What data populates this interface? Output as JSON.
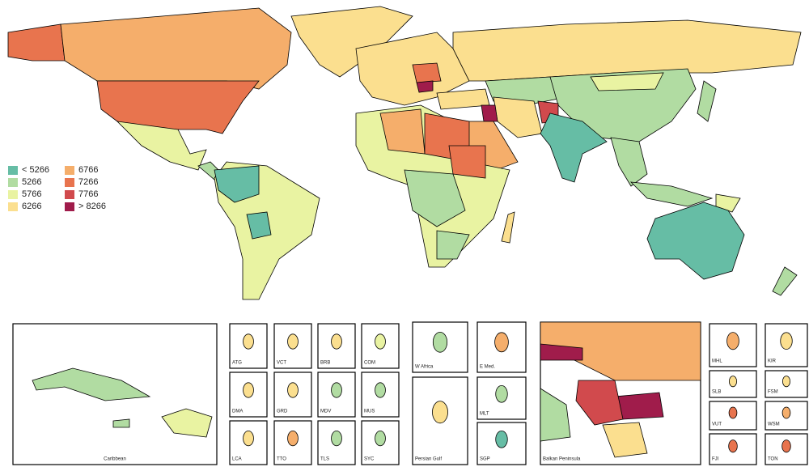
{
  "legend": {
    "items": [
      {
        "label": "< 5266",
        "color": "#66bda5"
      },
      {
        "label": "5266",
        "color": "#b1dca2"
      },
      {
        "label": "5766",
        "color": "#e9f3a2"
      },
      {
        "label": "6266",
        "color": "#fbdf8f"
      },
      {
        "label": "6766",
        "color": "#f5ae6b"
      },
      {
        "label": "7266",
        "color": "#e8744e"
      },
      {
        "label": "7766",
        "color": "#d14a4d"
      },
      {
        "label": "> 8266",
        "color": "#a01c4b"
      }
    ]
  },
  "insets": {
    "labels": [
      "Caribbean",
      "ATG",
      "VCT",
      "BRB",
      "COM",
      "DMA",
      "GRD",
      "MDV",
      "MUS",
      "LCA",
      "TTO",
      "TLS",
      "SYC",
      "W Africa",
      "E Med.",
      "Persian Gulf",
      "MLT",
      "SGP",
      "Balkan Peninsula",
      "MHL",
      "KIR",
      "SLB",
      "FSM",
      "VUT",
      "WSM",
      "FJI",
      "TON"
    ]
  }
}
